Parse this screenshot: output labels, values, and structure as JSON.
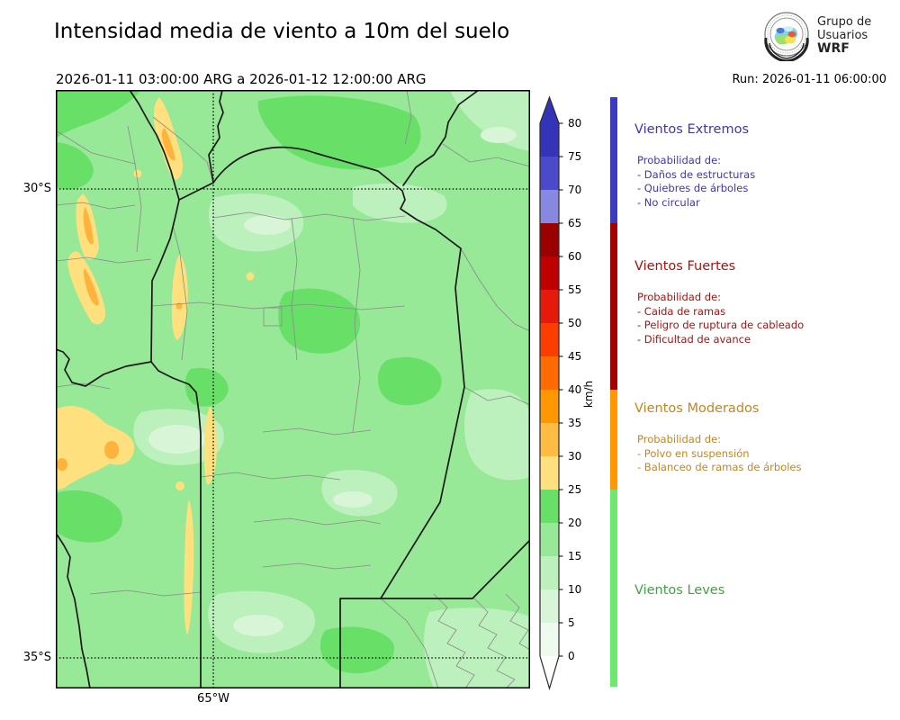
{
  "title": "Intensidad media de viento a 10m del suelo",
  "subtitle": "2026-01-11 03:00:00 ARG  a  2026-01-12 12:00:00 ARG",
  "run_label": "Run: 2026-01-11 06:00:00",
  "logo": {
    "line1": "Grupo de",
    "line2": "Usuarios",
    "line3": "WRF"
  },
  "map": {
    "y_axis_labels": [
      "30°S",
      "35°S"
    ],
    "x_axis_label": "65°W",
    "palette": {
      "g0": "#EDFAED",
      "g1": "#D8F5D8",
      "g2": "#BCF0BC",
      "base": "#97E897",
      "g4": "#68E068",
      "yellow": "#FFE07E",
      "orange": "#FFB23C",
      "orange_deep": "#FF9800",
      "dept_border": "#8a8a8a",
      "prov_border": "#1a1a1a",
      "grid": "#000000"
    }
  },
  "colorbar": {
    "unit": "km/h",
    "min": 0,
    "max": 80,
    "ticks": [
      0,
      5,
      10,
      15,
      20,
      25,
      30,
      35,
      40,
      45,
      50,
      55,
      60,
      65,
      70,
      75,
      80
    ],
    "over_color": "#3434B8",
    "under_color": "#FCFFFC",
    "segments": [
      {
        "from": 0,
        "to": 5,
        "color": "#EDFAED"
      },
      {
        "from": 5,
        "to": 10,
        "color": "#D8F5D8"
      },
      {
        "from": 10,
        "to": 15,
        "color": "#BCF0BC"
      },
      {
        "from": 15,
        "to": 20,
        "color": "#97E897"
      },
      {
        "from": 20,
        "to": 25,
        "color": "#68E068"
      },
      {
        "from": 25,
        "to": 30,
        "color": "#FFE07E"
      },
      {
        "from": 30,
        "to": 35,
        "color": "#FFBC42"
      },
      {
        "from": 35,
        "to": 40,
        "color": "#FF9800"
      },
      {
        "from": 40,
        "to": 45,
        "color": "#FF6B00"
      },
      {
        "from": 45,
        "to": 50,
        "color": "#FB3D00"
      },
      {
        "from": 50,
        "to": 55,
        "color": "#E51A0A"
      },
      {
        "from": 55,
        "to": 60,
        "color": "#C00000"
      },
      {
        "from": 60,
        "to": 65,
        "color": "#9B0000"
      },
      {
        "from": 65,
        "to": 70,
        "color": "#8888E0"
      },
      {
        "from": 70,
        "to": 75,
        "color": "#4A4ACB"
      },
      {
        "from": 75,
        "to": 80,
        "color": "#3434B8"
      }
    ]
  },
  "legend": {
    "sections": [
      {
        "title": "Vientos Extremos",
        "color": "#4433B3",
        "bar_color": "#3B3BBE",
        "range_from": 65,
        "range_to": 85,
        "items_header": "Probabilidad de:",
        "items": [
          "- Daños de estructuras",
          "- Quiebres de árboles",
          "- No circular"
        ]
      },
      {
        "title": "Vientos Fuertes",
        "color": "#AA1111",
        "bar_color": "#A50000",
        "range_from": 40,
        "range_to": 65,
        "items_header": "Probabilidad de:",
        "items": [
          "- Caida de ramas",
          "- Peligro de ruptura de cableado",
          "- Dificultad de avance"
        ]
      },
      {
        "title": "Vientos Moderados",
        "color": "#C8841F",
        "bar_color": "#FF9800",
        "range_from": 25,
        "range_to": 40,
        "items_header": "Probabilidad de:",
        "items": [
          "- Polvo en suspensión",
          "- Balanceo de ramas de árboles"
        ]
      },
      {
        "title": "Vientos Leves",
        "color": "#3FA43F",
        "bar_color": "#6FE86F",
        "range_from": 0,
        "range_to": 25,
        "items_header": "",
        "items": []
      }
    ]
  }
}
